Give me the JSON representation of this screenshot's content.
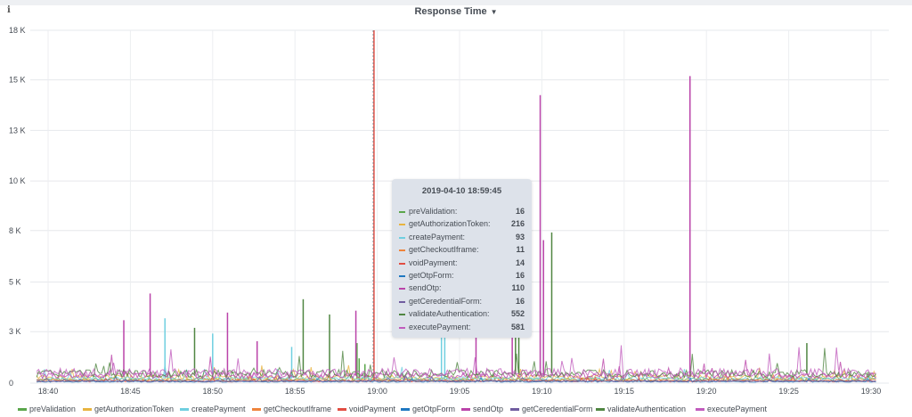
{
  "panel": {
    "title": "Response Time",
    "info_label": "i",
    "caret": "▼"
  },
  "tooltip": {
    "time": "2019-04-10 18:59:45",
    "rows": [
      {
        "name": "preValidation:",
        "value": "16",
        "color": "#5aa64b"
      },
      {
        "name": "getAuthorizationToken:",
        "value": "216",
        "color": "#e8b440"
      },
      {
        "name": "createPayment:",
        "value": "93",
        "color": "#6fcfe0"
      },
      {
        "name": "getCheckoutIframe:",
        "value": "11",
        "color": "#ef843c"
      },
      {
        "name": "voidPayment:",
        "value": "14",
        "color": "#e24d42"
      },
      {
        "name": "getOtpForm:",
        "value": "16",
        "color": "#1f78c1"
      },
      {
        "name": "sendOtp:",
        "value": "110",
        "color": "#ba43a9"
      },
      {
        "name": "getCeredentialForm:",
        "value": "16",
        "color": "#705da0"
      },
      {
        "name": "validateAuthentication:",
        "value": "552",
        "color": "#508642"
      },
      {
        "name": "executePayment:",
        "value": "581",
        "color": "#c15cbd"
      }
    ]
  },
  "chart_data": {
    "type": "line",
    "title": "Response Time",
    "xlabel": "",
    "ylabel": "",
    "x_ticks": [
      "18:40",
      "18:45",
      "18:50",
      "18:55",
      "19:00",
      "19:05",
      "19:10",
      "19:15",
      "19:20",
      "19:25",
      "19:30"
    ],
    "y_ticks": [
      "0",
      "3 K",
      "5 K",
      "8 K",
      "10 K",
      "13 K",
      "15 K",
      "18 K"
    ],
    "xlim": [
      "18:39:20",
      "19:30:50"
    ],
    "ylim": [
      0,
      18500
    ],
    "grid": true,
    "legend_position": "bottom",
    "series": [
      {
        "name": "preValidation",
        "color": "#5aa64b",
        "baseline": 200,
        "spikes": [
          [
            18.77,
            2100
          ],
          [
            18.9,
            1300
          ],
          [
            19.25,
            1000
          ]
        ]
      },
      {
        "name": "getAuthorizationToken",
        "color": "#e8b440",
        "baseline": 300,
        "spikes": []
      },
      {
        "name": "createPayment",
        "color": "#6fcfe0",
        "baseline": 250,
        "spikes": [
          [
            47.1,
            3400
          ],
          [
            50.0,
            2600
          ],
          [
            54.8,
            1900
          ],
          [
            63.9,
            3100
          ],
          [
            64.1,
            2900
          ]
        ]
      },
      {
        "name": "getCheckoutIframe",
        "color": "#ef843c",
        "baseline": 150,
        "spikes": []
      },
      {
        "name": "voidPayment",
        "color": "#e24d42",
        "baseline": 100,
        "spikes": [
          [
            59.8,
            18500
          ]
        ]
      },
      {
        "name": "getOtpForm",
        "color": "#1f78c1",
        "baseline": 80,
        "spikes": []
      },
      {
        "name": "sendOtp",
        "color": "#ba43a9",
        "baseline": 400,
        "spikes": [
          [
            44.6,
            3300
          ],
          [
            46.2,
            4700
          ],
          [
            50.9,
            3700
          ],
          [
            52.7,
            2200
          ],
          [
            58.7,
            3800
          ],
          [
            66.0,
            5600
          ],
          [
            68.2,
            5200
          ],
          [
            69.9,
            15100
          ],
          [
            70.1,
            7500
          ],
          [
            79.0,
            16100
          ]
        ]
      },
      {
        "name": "getCeredentialForm",
        "color": "#705da0",
        "baseline": 120,
        "spikes": []
      },
      {
        "name": "validateAuthentication",
        "color": "#508642",
        "baseline": 500,
        "spikes": [
          [
            48.9,
            2900
          ],
          [
            55.5,
            4400
          ],
          [
            57.1,
            3600
          ],
          [
            70.6,
            7900
          ],
          [
            68.4,
            7200
          ],
          [
            68.6,
            6000
          ],
          [
            86.1,
            2100
          ]
        ]
      },
      {
        "name": "executePayment",
        "color": "#c15cbd",
        "baseline": 550,
        "spikes": []
      }
    ]
  },
  "legend": [
    {
      "name": "preValidation",
      "color": "#5aa64b"
    },
    {
      "name": "getAuthorizationToken",
      "color": "#e8b440"
    },
    {
      "name": "createPayment",
      "color": "#6fcfe0"
    },
    {
      "name": "getCheckoutIframe",
      "color": "#ef843c"
    },
    {
      "name": "voidPayment",
      "color": "#e24d42"
    },
    {
      "name": "getOtpForm",
      "color": "#1f78c1"
    },
    {
      "name": "sendOtp",
      "color": "#ba43a9"
    },
    {
      "name": "getCeredentialForm",
      "color": "#705da0"
    },
    {
      "name": "validateAuthentication",
      "color": "#508642"
    },
    {
      "name": "executePayment",
      "color": "#c15cbd"
    }
  ]
}
